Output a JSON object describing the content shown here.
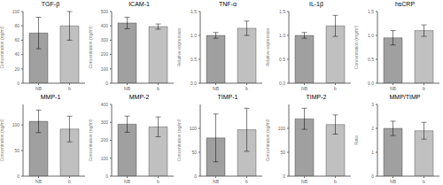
{
  "chart_data": [
    {
      "type": "bar",
      "title": "TGF-β",
      "ylabel": "Concentration (ng/ml)",
      "categories": [
        "NB",
        "b"
      ],
      "values": [
        70,
        80
      ],
      "errors": [
        22,
        20
      ],
      "colors": [
        "#a0a0a0",
        "#c0c0c0"
      ],
      "ylim": [
        0,
        100
      ],
      "yticks": [
        0,
        20,
        40,
        60,
        80,
        100
      ]
    },
    {
      "type": "bar",
      "title": "ICAM-1",
      "ylabel": "Concentration (ng/ml)",
      "categories": [
        "NB",
        "b"
      ],
      "values": [
        420,
        395
      ],
      "errors": [
        40,
        18
      ],
      "colors": [
        "#a0a0a0",
        "#c0c0c0"
      ],
      "ylim": [
        0,
        500
      ],
      "yticks": [
        0,
        100,
        200,
        300,
        400,
        500
      ]
    },
    {
      "type": "bar",
      "title": "TNF-α",
      "ylabel": "Relative expression",
      "categories": [
        "NB",
        "b"
      ],
      "values": [
        1.0,
        1.15
      ],
      "errors": [
        0.06,
        0.15
      ],
      "colors": [
        "#a0a0a0",
        "#c0c0c0"
      ],
      "ylim": [
        0,
        1.5
      ],
      "yticks": [
        {
          "value": 0,
          "label": "0.0"
        },
        0.5,
        {
          "value": 1,
          "label": "1.0"
        },
        1.5
      ]
    },
    {
      "type": "bar",
      "title": "IL-1β",
      "ylabel": "Relative expression",
      "categories": [
        "NB",
        "b"
      ],
      "values": [
        1.0,
        1.2
      ],
      "errors": [
        0.06,
        0.22
      ],
      "colors": [
        "#a0a0a0",
        "#c0c0c0"
      ],
      "ylim": [
        0,
        1.5
      ],
      "yticks": [
        {
          "value": 0,
          "label": "0.0"
        },
        0.5,
        {
          "value": 1,
          "label": "1.0"
        },
        1.5
      ]
    },
    {
      "type": "bar",
      "title": "hsCRP",
      "ylabel": "Concentration (mg/ml)",
      "categories": [
        "NB",
        "b"
      ],
      "values": [
        0.95,
        1.1
      ],
      "errors": [
        0.15,
        0.12
      ],
      "colors": [
        "#a0a0a0",
        "#c0c0c0"
      ],
      "ylim": [
        0,
        1.5
      ],
      "yticks": [
        {
          "value": 0,
          "label": "0.0"
        },
        0.5,
        {
          "value": 1,
          "label": "1.0"
        },
        1.5
      ]
    },
    {
      "type": "bar",
      "title": "MMP-1",
      "ylabel": "Concentration (ng/ml)",
      "categories": [
        "NB",
        "b"
      ],
      "values": [
        107,
        92
      ],
      "errors": [
        22,
        25
      ],
      "colors": [
        "#a0a0a0",
        "#c0c0c0"
      ],
      "ylim": [
        0,
        140
      ],
      "yticks": [
        0,
        50,
        100
      ]
    },
    {
      "type": "bar",
      "title": "MMP-2",
      "ylabel": "Concentration (ng/ml)",
      "categories": [
        "NB",
        "b"
      ],
      "values": [
        290,
        275
      ],
      "errors": [
        45,
        55
      ],
      "colors": [
        "#a0a0a0",
        "#c0c0c0"
      ],
      "ylim": [
        0,
        400
      ],
      "yticks": [
        0,
        100,
        200,
        300,
        400
      ]
    },
    {
      "type": "bar",
      "title": "TIMP-1",
      "ylabel": "Concentration (ng/ml)",
      "categories": [
        "NB",
        "b"
      ],
      "values": [
        80,
        97
      ],
      "errors": [
        50,
        45
      ],
      "colors": [
        "#a0a0a0",
        "#c0c0c0"
      ],
      "ylim": [
        0,
        150
      ],
      "yticks": [
        0,
        50,
        100
      ]
    },
    {
      "type": "bar",
      "title": "TIMP-2",
      "ylabel": "Concentration (ng/ml)",
      "categories": [
        "NB",
        "b"
      ],
      "values": [
        120,
        108
      ],
      "errors": [
        22,
        20
      ],
      "colors": [
        "#a0a0a0",
        "#c0c0c0"
      ],
      "ylim": [
        0,
        150
      ],
      "yticks": [
        0,
        50,
        100
      ]
    },
    {
      "type": "bar",
      "title": "MMP/TIMP",
      "ylabel": "Ratio",
      "categories": [
        "NB",
        "b"
      ],
      "values": [
        2.0,
        1.9
      ],
      "errors": [
        0.3,
        0.35
      ],
      "colors": [
        "#a0a0a0",
        "#c0c0c0"
      ],
      "ylim": [
        0,
        3
      ],
      "yticks": [
        0,
        1,
        2,
        3
      ]
    }
  ]
}
